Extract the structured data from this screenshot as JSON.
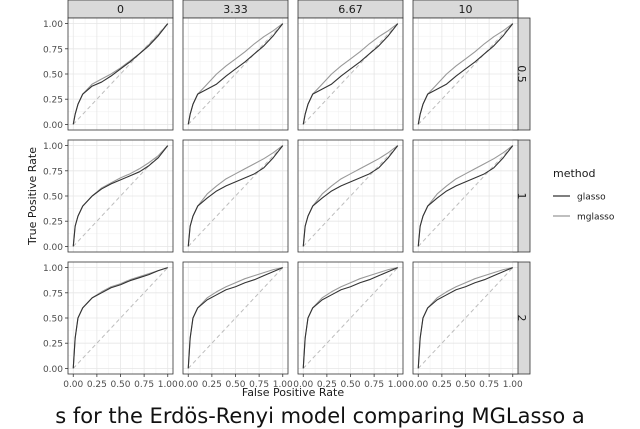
{
  "chart_data": {
    "type": "line",
    "grid": true,
    "col_facets": [
      "0",
      "3.33",
      "6.67",
      "10"
    ],
    "row_facets": [
      "0.5",
      "1",
      "2"
    ],
    "xlabel": "False Positive Rate",
    "ylabel": "True Positive Rate",
    "xlim": [
      0,
      1
    ],
    "ylim": [
      0,
      1
    ],
    "x_ticks": [
      "0.00",
      "0.25",
      "0.50",
      "0.75",
      "1.00"
    ],
    "y_ticks": [
      "0.00",
      "0.25",
      "0.50",
      "0.75",
      "1.00"
    ],
    "legend": {
      "title": "method",
      "position": "right",
      "entries": [
        {
          "name": "glasso",
          "color": "#333333"
        },
        {
          "name": "mglasso",
          "color": "#999999"
        }
      ]
    },
    "reference_line": {
      "style": "dashed",
      "from": [
        0,
        0
      ],
      "to": [
        1,
        1
      ]
    },
    "panels": [
      {
        "row": "0.5",
        "col": "0",
        "series": [
          {
            "name": "glasso",
            "x": [
              0,
              0.02,
              0.05,
              0.1,
              0.2,
              0.3,
              0.4,
              0.5,
              0.6,
              0.7,
              0.8,
              0.9,
              1.0
            ],
            "y": [
              0,
              0.1,
              0.2,
              0.3,
              0.38,
              0.42,
              0.48,
              0.55,
              0.62,
              0.7,
              0.78,
              0.88,
              1.0
            ]
          },
          {
            "name": "mglasso",
            "x": [
              0,
              0.02,
              0.05,
              0.1,
              0.2,
              0.3,
              0.4,
              0.5,
              0.6,
              0.7,
              0.8,
              0.9,
              1.0
            ],
            "y": [
              0,
              0.1,
              0.2,
              0.3,
              0.4,
              0.45,
              0.5,
              0.56,
              0.63,
              0.7,
              0.79,
              0.89,
              1.0
            ]
          }
        ]
      },
      {
        "row": "0.5",
        "col": "3.33",
        "series": [
          {
            "name": "glasso",
            "x": [
              0,
              0.02,
              0.05,
              0.1,
              0.2,
              0.3,
              0.4,
              0.5,
              0.6,
              0.7,
              0.8,
              0.9,
              1.0
            ],
            "y": [
              0,
              0.1,
              0.2,
              0.3,
              0.35,
              0.4,
              0.48,
              0.55,
              0.62,
              0.7,
              0.78,
              0.88,
              1.0
            ]
          },
          {
            "name": "mglasso",
            "x": [
              0,
              0.02,
              0.05,
              0.1,
              0.2,
              0.3,
              0.4,
              0.5,
              0.6,
              0.7,
              0.8,
              0.9,
              1.0
            ],
            "y": [
              0,
              0.1,
              0.2,
              0.3,
              0.4,
              0.5,
              0.58,
              0.65,
              0.72,
              0.8,
              0.87,
              0.93,
              1.0
            ]
          }
        ]
      },
      {
        "row": "0.5",
        "col": "6.67",
        "series": [
          {
            "name": "glasso",
            "x": [
              0,
              0.02,
              0.05,
              0.1,
              0.2,
              0.3,
              0.4,
              0.5,
              0.6,
              0.7,
              0.8,
              0.9,
              1.0
            ],
            "y": [
              0,
              0.1,
              0.2,
              0.3,
              0.35,
              0.4,
              0.48,
              0.55,
              0.62,
              0.7,
              0.78,
              0.88,
              1.0
            ]
          },
          {
            "name": "mglasso",
            "x": [
              0,
              0.02,
              0.05,
              0.1,
              0.2,
              0.3,
              0.4,
              0.5,
              0.6,
              0.7,
              0.8,
              0.9,
              1.0
            ],
            "y": [
              0,
              0.1,
              0.2,
              0.3,
              0.4,
              0.5,
              0.58,
              0.65,
              0.72,
              0.8,
              0.87,
              0.93,
              1.0
            ]
          }
        ]
      },
      {
        "row": "0.5",
        "col": "10",
        "series": [
          {
            "name": "glasso",
            "x": [
              0,
              0.02,
              0.05,
              0.1,
              0.2,
              0.3,
              0.4,
              0.5,
              0.6,
              0.7,
              0.8,
              0.9,
              1.0
            ],
            "y": [
              0,
              0.1,
              0.2,
              0.3,
              0.35,
              0.4,
              0.48,
              0.55,
              0.62,
              0.7,
              0.78,
              0.88,
              1.0
            ]
          },
          {
            "name": "mglasso",
            "x": [
              0,
              0.02,
              0.05,
              0.1,
              0.2,
              0.3,
              0.4,
              0.5,
              0.6,
              0.7,
              0.8,
              0.9,
              1.0
            ],
            "y": [
              0,
              0.1,
              0.2,
              0.3,
              0.4,
              0.5,
              0.58,
              0.65,
              0.72,
              0.8,
              0.87,
              0.93,
              1.0
            ]
          }
        ]
      },
      {
        "row": "1",
        "col": "0",
        "series": [
          {
            "name": "glasso",
            "x": [
              0,
              0.02,
              0.05,
              0.1,
              0.2,
              0.3,
              0.4,
              0.5,
              0.6,
              0.7,
              0.8,
              0.9,
              1.0
            ],
            "y": [
              0,
              0.2,
              0.3,
              0.4,
              0.5,
              0.57,
              0.62,
              0.66,
              0.7,
              0.74,
              0.8,
              0.88,
              1.0
            ]
          },
          {
            "name": "mglasso",
            "x": [
              0,
              0.02,
              0.05,
              0.1,
              0.2,
              0.3,
              0.4,
              0.5,
              0.6,
              0.7,
              0.8,
              0.9,
              1.0
            ],
            "y": [
              0,
              0.2,
              0.3,
              0.4,
              0.5,
              0.58,
              0.63,
              0.68,
              0.72,
              0.77,
              0.83,
              0.9,
              1.0
            ]
          }
        ]
      },
      {
        "row": "1",
        "col": "3.33",
        "series": [
          {
            "name": "glasso",
            "x": [
              0,
              0.02,
              0.05,
              0.1,
              0.2,
              0.3,
              0.4,
              0.5,
              0.6,
              0.7,
              0.8,
              0.9,
              1.0
            ],
            "y": [
              0,
              0.2,
              0.3,
              0.4,
              0.48,
              0.55,
              0.6,
              0.64,
              0.68,
              0.72,
              0.78,
              0.88,
              1.0
            ]
          },
          {
            "name": "mglasso",
            "x": [
              0,
              0.02,
              0.05,
              0.1,
              0.2,
              0.3,
              0.4,
              0.5,
              0.6,
              0.7,
              0.8,
              0.9,
              1.0
            ],
            "y": [
              0,
              0.2,
              0.3,
              0.4,
              0.52,
              0.6,
              0.67,
              0.72,
              0.77,
              0.82,
              0.87,
              0.93,
              1.0
            ]
          }
        ]
      },
      {
        "row": "1",
        "col": "6.67",
        "series": [
          {
            "name": "glasso",
            "x": [
              0,
              0.02,
              0.05,
              0.1,
              0.2,
              0.3,
              0.4,
              0.5,
              0.6,
              0.7,
              0.8,
              0.9,
              1.0
            ],
            "y": [
              0,
              0.2,
              0.3,
              0.4,
              0.48,
              0.55,
              0.6,
              0.64,
              0.68,
              0.72,
              0.78,
              0.88,
              1.0
            ]
          },
          {
            "name": "mglasso",
            "x": [
              0,
              0.02,
              0.05,
              0.1,
              0.2,
              0.3,
              0.4,
              0.5,
              0.6,
              0.7,
              0.8,
              0.9,
              1.0
            ],
            "y": [
              0,
              0.2,
              0.3,
              0.4,
              0.52,
              0.6,
              0.67,
              0.72,
              0.77,
              0.82,
              0.87,
              0.93,
              1.0
            ]
          }
        ]
      },
      {
        "row": "1",
        "col": "10",
        "series": [
          {
            "name": "glasso",
            "x": [
              0,
              0.02,
              0.05,
              0.1,
              0.2,
              0.3,
              0.4,
              0.5,
              0.6,
              0.7,
              0.8,
              0.9,
              1.0
            ],
            "y": [
              0,
              0.2,
              0.3,
              0.4,
              0.48,
              0.55,
              0.6,
              0.64,
              0.68,
              0.72,
              0.78,
              0.88,
              1.0
            ]
          },
          {
            "name": "mglasso",
            "x": [
              0,
              0.02,
              0.05,
              0.1,
              0.2,
              0.3,
              0.4,
              0.5,
              0.6,
              0.7,
              0.8,
              0.9,
              1.0
            ],
            "y": [
              0,
              0.2,
              0.3,
              0.4,
              0.52,
              0.6,
              0.67,
              0.72,
              0.77,
              0.82,
              0.87,
              0.93,
              1.0
            ]
          }
        ]
      },
      {
        "row": "2",
        "col": "0",
        "series": [
          {
            "name": "glasso",
            "x": [
              0,
              0.02,
              0.05,
              0.1,
              0.2,
              0.3,
              0.4,
              0.5,
              0.6,
              0.7,
              0.8,
              0.9,
              1.0
            ],
            "y": [
              0,
              0.3,
              0.5,
              0.6,
              0.7,
              0.75,
              0.8,
              0.83,
              0.87,
              0.9,
              0.93,
              0.97,
              1.0
            ]
          },
          {
            "name": "mglasso",
            "x": [
              0,
              0.02,
              0.05,
              0.1,
              0.2,
              0.3,
              0.4,
              0.5,
              0.6,
              0.7,
              0.8,
              0.9,
              1.0
            ],
            "y": [
              0,
              0.3,
              0.5,
              0.6,
              0.7,
              0.76,
              0.81,
              0.84,
              0.88,
              0.91,
              0.94,
              0.97,
              1.0
            ]
          }
        ]
      },
      {
        "row": "2",
        "col": "3.33",
        "series": [
          {
            "name": "glasso",
            "x": [
              0,
              0.02,
              0.05,
              0.1,
              0.2,
              0.3,
              0.4,
              0.5,
              0.6,
              0.7,
              0.8,
              0.9,
              1.0
            ],
            "y": [
              0,
              0.3,
              0.5,
              0.6,
              0.68,
              0.73,
              0.78,
              0.81,
              0.85,
              0.88,
              0.92,
              0.96,
              1.0
            ]
          },
          {
            "name": "mglasso",
            "x": [
              0,
              0.02,
              0.05,
              0.1,
              0.2,
              0.3,
              0.4,
              0.5,
              0.6,
              0.7,
              0.8,
              0.9,
              1.0
            ],
            "y": [
              0,
              0.3,
              0.5,
              0.6,
              0.7,
              0.76,
              0.81,
              0.85,
              0.89,
              0.92,
              0.95,
              0.98,
              1.0
            ]
          }
        ]
      },
      {
        "row": "2",
        "col": "6.67",
        "series": [
          {
            "name": "glasso",
            "x": [
              0,
              0.02,
              0.05,
              0.1,
              0.2,
              0.3,
              0.4,
              0.5,
              0.6,
              0.7,
              0.8,
              0.9,
              1.0
            ],
            "y": [
              0,
              0.3,
              0.5,
              0.6,
              0.68,
              0.73,
              0.78,
              0.81,
              0.85,
              0.88,
              0.92,
              0.96,
              1.0
            ]
          },
          {
            "name": "mglasso",
            "x": [
              0,
              0.02,
              0.05,
              0.1,
              0.2,
              0.3,
              0.4,
              0.5,
              0.6,
              0.7,
              0.8,
              0.9,
              1.0
            ],
            "y": [
              0,
              0.3,
              0.5,
              0.6,
              0.7,
              0.76,
              0.81,
              0.85,
              0.89,
              0.92,
              0.95,
              0.98,
              1.0
            ]
          }
        ]
      },
      {
        "row": "2",
        "col": "10",
        "series": [
          {
            "name": "glasso",
            "x": [
              0,
              0.02,
              0.05,
              0.1,
              0.2,
              0.3,
              0.4,
              0.5,
              0.6,
              0.7,
              0.8,
              0.9,
              1.0
            ],
            "y": [
              0,
              0.3,
              0.5,
              0.6,
              0.68,
              0.73,
              0.78,
              0.81,
              0.85,
              0.88,
              0.92,
              0.96,
              1.0
            ]
          },
          {
            "name": "mglasso",
            "x": [
              0,
              0.02,
              0.05,
              0.1,
              0.2,
              0.3,
              0.4,
              0.5,
              0.6,
              0.7,
              0.8,
              0.9,
              1.0
            ],
            "y": [
              0,
              0.3,
              0.5,
              0.6,
              0.7,
              0.76,
              0.81,
              0.85,
              0.89,
              0.92,
              0.95,
              0.98,
              1.0
            ]
          }
        ]
      }
    ]
  },
  "caption": "s for the Erdös-Renyi model comparing MGLasso a"
}
